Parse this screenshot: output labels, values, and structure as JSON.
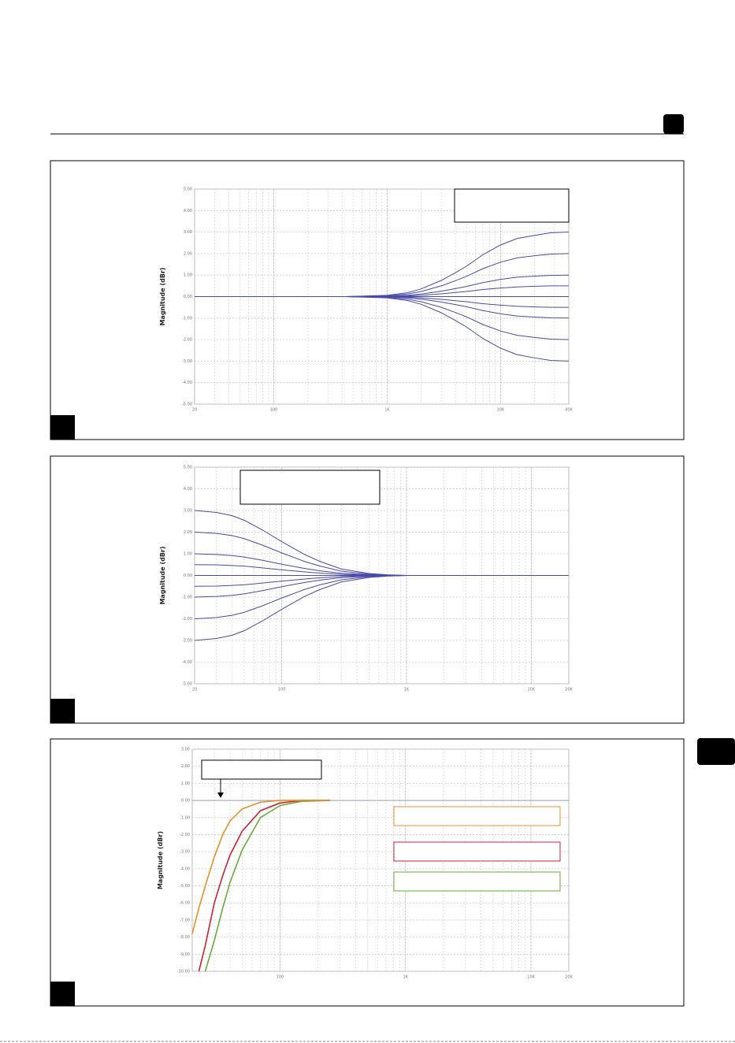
{
  "chart_data": [
    {
      "type": "line",
      "ylabel": "Magnitude (dBr)",
      "xscale": "log",
      "grid": true,
      "minor_grid": true,
      "xlim": [
        20,
        40000
      ],
      "ylim": [
        -5,
        5
      ],
      "xticks": [
        20,
        100,
        {
          "value": 1000,
          "label": "1K"
        },
        {
          "value": 10000,
          "label": "10K"
        },
        {
          "value": 40000,
          "label": "40K"
        }
      ],
      "yticks": [
        {
          "value": 5,
          "label": "5.00"
        },
        {
          "value": 4,
          "label": "4.00"
        },
        {
          "value": 3,
          "label": "3.00"
        },
        {
          "value": 2,
          "label": "2.00"
        },
        {
          "value": 1,
          "label": "1.00"
        },
        {
          "value": 0,
          "label": "0.00"
        },
        {
          "value": -1,
          "label": "-1.00"
        },
        {
          "value": -2,
          "label": "-2.00"
        },
        {
          "value": -3,
          "label": "-3.00"
        },
        {
          "value": -4,
          "label": "-4.00"
        },
        {
          "value": -5,
          "label": "-5.00"
        }
      ],
      "x": [
        20,
        100,
        430,
        1000,
        1500,
        2000,
        3000,
        4000,
        5000,
        7000,
        10000,
        14000,
        20000,
        28000,
        40000
      ],
      "series": [
        {
          "color": "#4a4aa8",
          "values": [
            0,
            0,
            0,
            0.06,
            0.18,
            0.36,
            0.75,
            1.11,
            1.41,
            1.95,
            2.4,
            2.7,
            2.85,
            2.97,
            3
          ]
        },
        {
          "color": "#4a4aa8",
          "values": [
            0,
            0,
            0,
            0.04,
            0.12,
            0.24,
            0.5,
            0.74,
            0.94,
            1.3,
            1.6,
            1.8,
            1.9,
            1.98,
            2
          ]
        },
        {
          "color": "#4a4aa8",
          "values": [
            0,
            0,
            0,
            0.02,
            0.06,
            0.12,
            0.25,
            0.37,
            0.47,
            0.65,
            0.8,
            0.9,
            0.95,
            0.99,
            1
          ]
        },
        {
          "color": "#4a4aa8",
          "values": [
            0,
            0,
            0,
            0.01,
            0.03,
            0.06,
            0.13,
            0.19,
            0.24,
            0.33,
            0.4,
            0.45,
            0.48,
            0.5,
            0.5
          ]
        },
        {
          "color": "#4a4aa8",
          "values": [
            0,
            0,
            0,
            0,
            0,
            0,
            0,
            0,
            0,
            0,
            0,
            0,
            0,
            0,
            0
          ]
        },
        {
          "color": "#4a4aa8",
          "values": [
            0,
            0,
            0,
            -0.01,
            -0.03,
            -0.06,
            -0.13,
            -0.19,
            -0.24,
            -0.33,
            -0.4,
            -0.45,
            -0.48,
            -0.5,
            -0.5
          ]
        },
        {
          "color": "#4a4aa8",
          "values": [
            0,
            0,
            0,
            -0.02,
            -0.06,
            -0.12,
            -0.25,
            -0.37,
            -0.47,
            -0.65,
            -0.8,
            -0.9,
            -0.95,
            -0.99,
            -1
          ]
        },
        {
          "color": "#4a4aa8",
          "values": [
            0,
            0,
            0,
            -0.04,
            -0.12,
            -0.24,
            -0.5,
            -0.74,
            -0.94,
            -1.3,
            -1.6,
            -1.8,
            -1.9,
            -1.98,
            -2
          ]
        },
        {
          "color": "#4a4aa8",
          "values": [
            0,
            0,
            0,
            -0.06,
            -0.18,
            -0.36,
            -0.75,
            -1.11,
            -1.41,
            -1.95,
            -2.4,
            -2.7,
            -2.85,
            -2.97,
            -3
          ]
        }
      ]
    },
    {
      "type": "line",
      "ylabel": "Magnitude (dBr)",
      "xscale": "log",
      "grid": true,
      "minor_grid": true,
      "xlim": [
        20,
        20000
      ],
      "ylim": [
        -5,
        5
      ],
      "xticks": [
        20,
        100,
        {
          "value": 1000,
          "label": "1K"
        },
        {
          "value": 10000,
          "label": "10K"
        },
        {
          "value": 20000,
          "label": "20K"
        }
      ],
      "yticks": [
        {
          "value": 5,
          "label": "5.00"
        },
        {
          "value": 4,
          "label": "4.00"
        },
        {
          "value": 3,
          "label": "3.00"
        },
        {
          "value": 2,
          "label": "2.00"
        },
        {
          "value": 1,
          "label": "1.00"
        },
        {
          "value": 0,
          "label": "0.00"
        },
        {
          "value": -1,
          "label": "-1.00"
        },
        {
          "value": -2,
          "label": "-2.00"
        },
        {
          "value": -3,
          "label": "-3.00"
        },
        {
          "value": -4,
          "label": "-4.00"
        },
        {
          "value": -5,
          "label": "-5.00"
        }
      ],
      "x": [
        20,
        30,
        40,
        50,
        70,
        100,
        150,
        200,
        300,
        500,
        700,
        1000,
        1500,
        20000
      ],
      "series": [
        {
          "color": "#4a4aa8",
          "values": [
            3,
            2.91,
            2.76,
            2.55,
            2.1,
            1.56,
            0.99,
            0.66,
            0.3,
            0.09,
            0.03,
            0,
            0,
            0
          ]
        },
        {
          "color": "#4a4aa8",
          "values": [
            2,
            1.94,
            1.84,
            1.7,
            1.4,
            1.04,
            0.66,
            0.44,
            0.2,
            0.06,
            0.02,
            0,
            0,
            0
          ]
        },
        {
          "color": "#4a4aa8",
          "values": [
            1,
            0.97,
            0.92,
            0.85,
            0.7,
            0.52,
            0.33,
            0.22,
            0.1,
            0.03,
            0.01,
            0,
            0,
            0
          ]
        },
        {
          "color": "#4a4aa8",
          "values": [
            0.5,
            0.49,
            0.46,
            0.43,
            0.35,
            0.26,
            0.17,
            0.11,
            0.05,
            0.02,
            0.01,
            0,
            0,
            0
          ]
        },
        {
          "color": "#4a4aa8",
          "values": [
            0,
            0,
            0,
            0,
            0,
            0,
            0,
            0,
            0,
            0,
            0,
            0,
            0,
            0
          ]
        },
        {
          "color": "#4a4aa8",
          "values": [
            -0.5,
            -0.49,
            -0.46,
            -0.43,
            -0.35,
            -0.26,
            -0.17,
            -0.11,
            -0.05,
            -0.02,
            -0.01,
            0,
            0,
            0
          ]
        },
        {
          "color": "#4a4aa8",
          "values": [
            -1,
            -0.97,
            -0.92,
            -0.85,
            -0.7,
            -0.52,
            -0.33,
            -0.22,
            -0.1,
            -0.03,
            -0.01,
            0,
            0,
            0
          ]
        },
        {
          "color": "#4a4aa8",
          "values": [
            -2,
            -1.94,
            -1.84,
            -1.7,
            -1.4,
            -1.04,
            -0.66,
            -0.44,
            -0.2,
            -0.06,
            -0.02,
            0,
            0,
            0
          ]
        },
        {
          "color": "#4a4aa8",
          "values": [
            -3,
            -2.91,
            -2.76,
            -2.55,
            -2.1,
            -1.56,
            -0.99,
            -0.66,
            -0.3,
            -0.09,
            -0.03,
            0,
            0,
            0
          ]
        }
      ]
    },
    {
      "type": "line",
      "ylabel": "Magnitude (dBr)",
      "xscale": "log",
      "grid": true,
      "minor_grid": true,
      "xlim": [
        20,
        20000
      ],
      "ylim": [
        -10,
        3
      ],
      "xticks": [
        100,
        {
          "value": 1000,
          "label": "1K"
        },
        {
          "value": 10000,
          "label": "10K"
        },
        {
          "value": 20000,
          "label": "20K"
        }
      ],
      "yticks": [
        {
          "value": 3,
          "label": "3.00"
        },
        {
          "value": 2,
          "label": "2.00"
        },
        {
          "value": 1,
          "label": "1.00"
        },
        {
          "value": 0,
          "label": "0.00"
        },
        {
          "value": -1,
          "label": "-1.00"
        },
        {
          "value": -2,
          "label": "-2.00"
        },
        {
          "value": -3,
          "label": "-3.00"
        },
        {
          "value": -4,
          "label": "-4.00"
        },
        {
          "value": -5,
          "label": "-5.00"
        },
        {
          "value": -6,
          "label": "-6.00"
        },
        {
          "value": -7,
          "label": "-7.00"
        },
        {
          "value": -8,
          "label": "-8.00"
        },
        {
          "value": -9,
          "label": "-9.00"
        },
        {
          "value": -10,
          "label": "-10.00"
        }
      ],
      "x": [
        20,
        22.6,
        25,
        25.4,
        30,
        35,
        40,
        50,
        70,
        100,
        150,
        250,
        20000
      ],
      "series": [
        {
          "color": "#9a9ad0",
          "values": [
            0,
            0,
            0,
            0,
            0,
            0,
            0,
            0,
            0,
            0,
            0,
            0,
            0
          ]
        },
        {
          "color": "#6aaa3a",
          "values": [
            null,
            null,
            null,
            -10,
            -8.2,
            -6.3,
            -4.8,
            -2.9,
            -1,
            -0.3,
            -0.05,
            0,
            null
          ]
        },
        {
          "color": "#cc2233",
          "values": [
            null,
            -10,
            -8.7,
            -8.5,
            -6,
            -4.4,
            -3.2,
            -1.8,
            -0.6,
            -0.15,
            0,
            0,
            null
          ]
        },
        {
          "color": "#e8902a",
          "values": [
            -7.8,
            -6.3,
            -5.2,
            -5,
            -3.3,
            -2,
            -1.2,
            -0.5,
            -0.1,
            0,
            0,
            0,
            null
          ]
        }
      ]
    }
  ]
}
